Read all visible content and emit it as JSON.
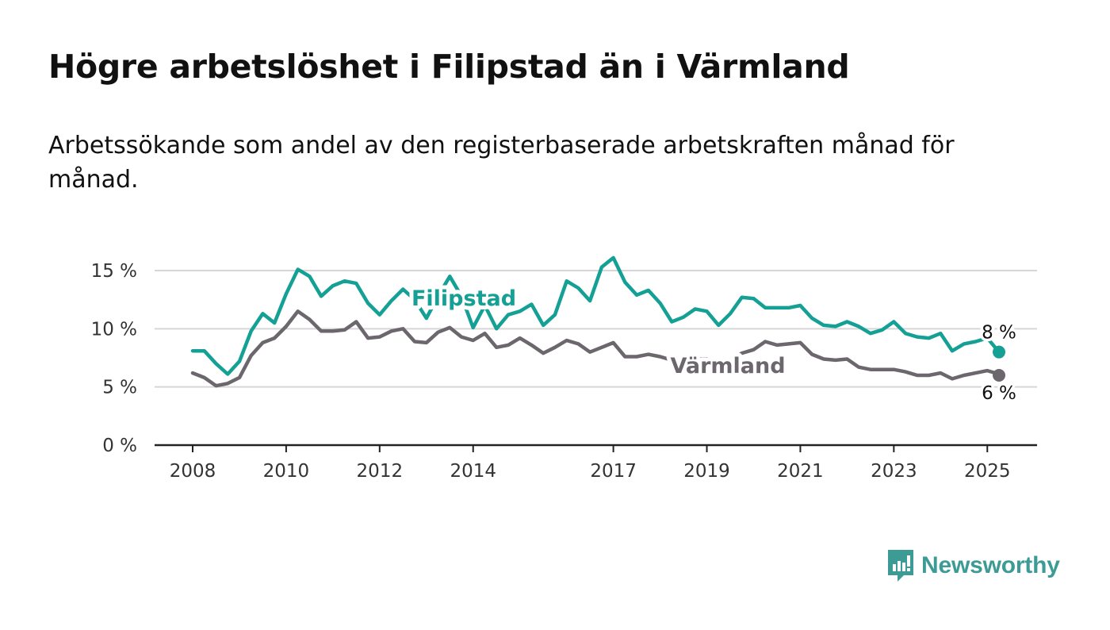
{
  "chart_title": "Högre arbetslöshet i Filipstad än i Värmland",
  "chart_subtitle": "Arbetssökande som andel av den registerbaserade arbetskraften månad för månad.",
  "brand": {
    "name": "Newsworthy",
    "color": "#3d9b96",
    "icon": "newsworthy-logo-icon"
  },
  "chart_data": {
    "type": "line",
    "title": "Högre arbetslöshet i Filipstad än i Värmland",
    "subtitle": "Arbetssökande som andel av den registerbaserade arbetskraften månad för månad.",
    "xlabel": "",
    "ylabel": "",
    "ylim": [
      0,
      15
    ],
    "xlim": [
      "2008-01",
      "2025-04"
    ],
    "y_ticks": [
      0,
      5,
      10,
      15
    ],
    "y_tick_labels": [
      "0 %",
      "5 %",
      "10 %",
      "15 %"
    ],
    "x_ticks": [
      "2008-01",
      "2010-01",
      "2012-01",
      "2014-01",
      "2017-01",
      "2019-01",
      "2021-01",
      "2023-01",
      "2025-01"
    ],
    "x_tick_labels": [
      "2008",
      "2010",
      "2012",
      "2014",
      "2017",
      "2019",
      "2021",
      "2023",
      "2025"
    ],
    "grid": "horizontal",
    "series": [
      {
        "name": "Filipstad",
        "color": "#14a094",
        "end_label": "8 %",
        "end_value": 8,
        "points": [
          [
            "2008-01",
            8.1
          ],
          [
            "2008-04",
            8.1
          ],
          [
            "2008-07",
            7.0
          ],
          [
            "2008-10",
            6.1
          ],
          [
            "2009-01",
            7.2
          ],
          [
            "2009-04",
            9.8
          ],
          [
            "2009-07",
            11.3
          ],
          [
            "2009-10",
            10.5
          ],
          [
            "2010-01",
            13.0
          ],
          [
            "2010-04",
            15.1
          ],
          [
            "2010-07",
            14.5
          ],
          [
            "2010-10",
            12.8
          ],
          [
            "2011-01",
            13.7
          ],
          [
            "2011-04",
            14.1
          ],
          [
            "2011-07",
            13.9
          ],
          [
            "2011-10",
            12.2
          ],
          [
            "2012-01",
            11.2
          ],
          [
            "2012-04",
            12.4
          ],
          [
            "2012-07",
            13.4
          ],
          [
            "2012-10",
            12.5
          ],
          [
            "2013-01",
            10.9
          ],
          [
            "2013-04",
            12.8
          ],
          [
            "2013-07",
            14.5
          ],
          [
            "2013-10",
            12.8
          ],
          [
            "2014-01",
            10.1
          ],
          [
            "2014-04",
            12.0
          ],
          [
            "2014-07",
            10.0
          ],
          [
            "2014-10",
            11.2
          ],
          [
            "2015-01",
            11.5
          ],
          [
            "2015-04",
            12.1
          ],
          [
            "2015-07",
            10.3
          ],
          [
            "2015-10",
            11.2
          ],
          [
            "2016-01",
            14.1
          ],
          [
            "2016-04",
            13.5
          ],
          [
            "2016-07",
            12.4
          ],
          [
            "2016-10",
            15.3
          ],
          [
            "2017-01",
            16.1
          ],
          [
            "2017-04",
            14.0
          ],
          [
            "2017-07",
            12.9
          ],
          [
            "2017-10",
            13.3
          ],
          [
            "2018-01",
            12.2
          ],
          [
            "2018-04",
            10.6
          ],
          [
            "2018-07",
            11.0
          ],
          [
            "2018-10",
            11.7
          ],
          [
            "2019-01",
            11.5
          ],
          [
            "2019-04",
            10.3
          ],
          [
            "2019-07",
            11.3
          ],
          [
            "2019-10",
            12.7
          ],
          [
            "2020-01",
            12.6
          ],
          [
            "2020-04",
            11.8
          ],
          [
            "2020-07",
            11.8
          ],
          [
            "2020-10",
            11.8
          ],
          [
            "2021-01",
            12.0
          ],
          [
            "2021-04",
            10.9
          ],
          [
            "2021-07",
            10.3
          ],
          [
            "2021-10",
            10.2
          ],
          [
            "2022-01",
            10.6
          ],
          [
            "2022-04",
            10.2
          ],
          [
            "2022-07",
            9.6
          ],
          [
            "2022-10",
            9.9
          ],
          [
            "2023-01",
            10.6
          ],
          [
            "2023-04",
            9.6
          ],
          [
            "2023-07",
            9.3
          ],
          [
            "2023-10",
            9.2
          ],
          [
            "2024-01",
            9.6
          ],
          [
            "2024-04",
            8.1
          ],
          [
            "2024-07",
            8.7
          ],
          [
            "2024-10",
            8.9
          ],
          [
            "2025-01",
            9.2
          ],
          [
            "2025-04",
            8.0
          ]
        ]
      },
      {
        "name": "Värmland",
        "color": "#6b676d",
        "end_label": "6 %",
        "end_value": 6,
        "points": [
          [
            "2008-01",
            6.2
          ],
          [
            "2008-04",
            5.8
          ],
          [
            "2008-07",
            5.1
          ],
          [
            "2008-10",
            5.3
          ],
          [
            "2009-01",
            5.8
          ],
          [
            "2009-04",
            7.7
          ],
          [
            "2009-07",
            8.8
          ],
          [
            "2009-10",
            9.2
          ],
          [
            "2010-01",
            10.2
          ],
          [
            "2010-04",
            11.5
          ],
          [
            "2010-07",
            10.8
          ],
          [
            "2010-10",
            9.8
          ],
          [
            "2011-01",
            9.8
          ],
          [
            "2011-04",
            9.9
          ],
          [
            "2011-07",
            10.6
          ],
          [
            "2011-10",
            9.2
          ],
          [
            "2012-01",
            9.3
          ],
          [
            "2012-04",
            9.8
          ],
          [
            "2012-07",
            10.0
          ],
          [
            "2012-10",
            8.9
          ],
          [
            "2013-01",
            8.8
          ],
          [
            "2013-04",
            9.7
          ],
          [
            "2013-07",
            10.1
          ],
          [
            "2013-10",
            9.3
          ],
          [
            "2014-01",
            9.0
          ],
          [
            "2014-04",
            9.6
          ],
          [
            "2014-07",
            8.4
          ],
          [
            "2014-10",
            8.6
          ],
          [
            "2015-01",
            9.2
          ],
          [
            "2015-04",
            8.6
          ],
          [
            "2015-07",
            7.9
          ],
          [
            "2015-10",
            8.4
          ],
          [
            "2016-01",
            9.0
          ],
          [
            "2016-04",
            8.7
          ],
          [
            "2016-07",
            8.0
          ],
          [
            "2016-10",
            8.4
          ],
          [
            "2017-01",
            8.8
          ],
          [
            "2017-04",
            7.6
          ],
          [
            "2017-07",
            7.6
          ],
          [
            "2017-10",
            7.8
          ],
          [
            "2018-01",
            7.6
          ],
          [
            "2018-04",
            7.3
          ],
          [
            "2018-07",
            7.1
          ],
          [
            "2018-10",
            7.4
          ],
          [
            "2019-01",
            7.4
          ],
          [
            "2019-04",
            7.2
          ],
          [
            "2019-07",
            7.3
          ],
          [
            "2019-10",
            7.9
          ],
          [
            "2020-01",
            8.2
          ],
          [
            "2020-04",
            8.9
          ],
          [
            "2020-07",
            8.6
          ],
          [
            "2020-10",
            8.7
          ],
          [
            "2021-01",
            8.8
          ],
          [
            "2021-04",
            7.8
          ],
          [
            "2021-07",
            7.4
          ],
          [
            "2021-10",
            7.3
          ],
          [
            "2022-01",
            7.4
          ],
          [
            "2022-04",
            6.7
          ],
          [
            "2022-07",
            6.5
          ],
          [
            "2022-10",
            6.5
          ],
          [
            "2023-01",
            6.5
          ],
          [
            "2023-04",
            6.3
          ],
          [
            "2023-07",
            6.0
          ],
          [
            "2023-10",
            6.0
          ],
          [
            "2024-01",
            6.2
          ],
          [
            "2024-04",
            5.7
          ],
          [
            "2024-07",
            6.0
          ],
          [
            "2024-10",
            6.2
          ],
          [
            "2025-01",
            6.4
          ],
          [
            "2025-04",
            6.1
          ]
        ]
      }
    ]
  }
}
